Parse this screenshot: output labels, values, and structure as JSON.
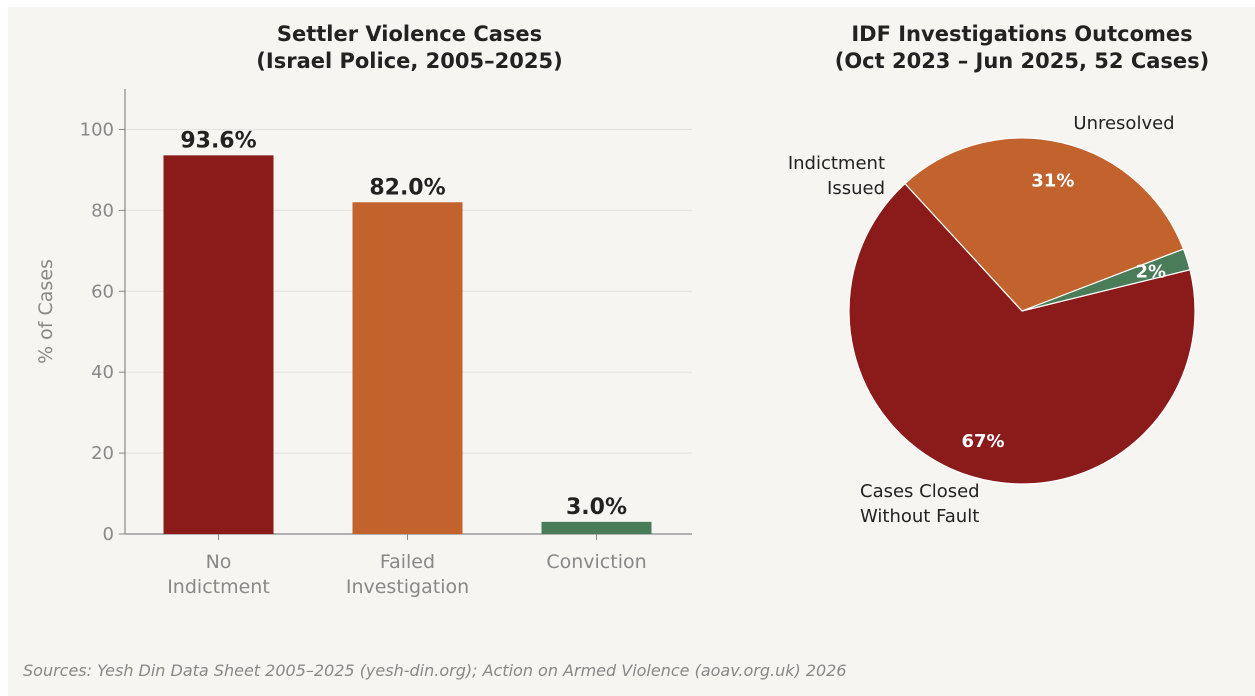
{
  "colors": {
    "background": "#f7f5f2",
    "dark_red": "#8b1a1a",
    "orange": "#c2622d",
    "green": "#4a7c59",
    "axis": "#888888",
    "grid": "#e6e4e0",
    "text": "#222222"
  },
  "chart_data": [
    {
      "type": "bar",
      "title": "Settler Violence Cases\n(Israel Police, 2005–2025)",
      "xlabel": "",
      "ylabel": "% of Cases",
      "ylim": [
        0,
        110
      ],
      "yticks": [
        "0",
        "20",
        "40",
        "60",
        "80",
        "100"
      ],
      "grid": "horizontal",
      "categories": [
        "No\nIndictment",
        "Failed\nInvestigation",
        "Conviction"
      ],
      "values": [
        93.6,
        82.0,
        3.0
      ],
      "value_labels": [
        "93.6%",
        "82.0%",
        "3.0%"
      ],
      "bar_colors": [
        "#8b1a1a",
        "#c2622d",
        "#4a7c59"
      ]
    },
    {
      "type": "pie",
      "title": "IDF Investigations Outcomes\n(Oct 2023 – Jun 2025, 52 Cases)",
      "slices": [
        {
          "label": "Unresolved",
          "value": 31,
          "pct_label": "31%",
          "color": "#c2622d"
        },
        {
          "label": "Cases Closed\nWithout Fault",
          "value": 67,
          "pct_label": "67%",
          "color": "#8b1a1a"
        },
        {
          "label": "Indictment\nIssued",
          "value": 2,
          "pct_label": "2%",
          "color": "#4a7c59"
        }
      ]
    }
  ],
  "source_note": "Sources: Yesh Din Data Sheet 2005–2025 (yesh-din.org); Action on Armed Violence (aoav.org.uk) 2026"
}
